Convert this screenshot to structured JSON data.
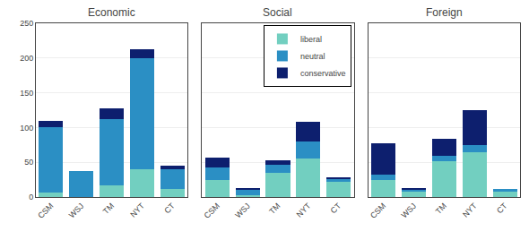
{
  "chart_data": [
    {
      "type": "bar",
      "title": "Economic",
      "stacked": true,
      "grid": true,
      "tick_labels": true,
      "categories": [
        "CSM",
        "WSJ",
        "TM",
        "NYT",
        "CT"
      ],
      "series": [
        {
          "name": "liberal",
          "color": "#72CFC0",
          "values": [
            7,
            0,
            17,
            40,
            12
          ]
        },
        {
          "name": "neutral",
          "color": "#2B8FC4",
          "values": [
            93,
            38,
            95,
            160,
            28
          ]
        },
        {
          "name": "conservative",
          "color": "#0D1F6E",
          "values": [
            10,
            0,
            15,
            13,
            5
          ]
        }
      ],
      "ylim": [
        0,
        250
      ],
      "yticks": [
        0,
        50,
        100,
        150,
        200,
        250
      ]
    },
    {
      "type": "bar",
      "title": "Social",
      "stacked": true,
      "grid": true,
      "tick_labels": "x",
      "legend": "upper right",
      "categories": [
        "CSM",
        "WSJ",
        "TM",
        "NYT",
        "CT"
      ],
      "series": [
        {
          "name": "liberal",
          "color": "#72CFC0",
          "values": [
            25,
            3,
            35,
            55,
            22
          ]
        },
        {
          "name": "neutral",
          "color": "#2B8FC4",
          "values": [
            18,
            7,
            12,
            25,
            4
          ]
        },
        {
          "name": "conservative",
          "color": "#0D1F6E",
          "values": [
            14,
            3,
            6,
            28,
            2
          ]
        }
      ],
      "ylim": [
        0,
        250
      ],
      "yticks": [
        0,
        50,
        100,
        150,
        200,
        250
      ]
    },
    {
      "type": "bar",
      "title": "Foreign",
      "stacked": true,
      "grid": true,
      "tick_labels": "x",
      "categories": [
        "CSM",
        "WSJ",
        "TM",
        "NYT",
        "CT"
      ],
      "series": [
        {
          "name": "liberal",
          "color": "#72CFC0",
          "values": [
            25,
            8,
            52,
            65,
            9
          ]
        },
        {
          "name": "neutral",
          "color": "#2B8FC4",
          "values": [
            7,
            3,
            7,
            10,
            2
          ]
        },
        {
          "name": "conservative",
          "color": "#0D1F6E",
          "values": [
            45,
            2,
            25,
            50,
            0
          ]
        }
      ],
      "ylim": [
        0,
        250
      ],
      "yticks": [
        0,
        50,
        100,
        150,
        200,
        250
      ]
    }
  ]
}
